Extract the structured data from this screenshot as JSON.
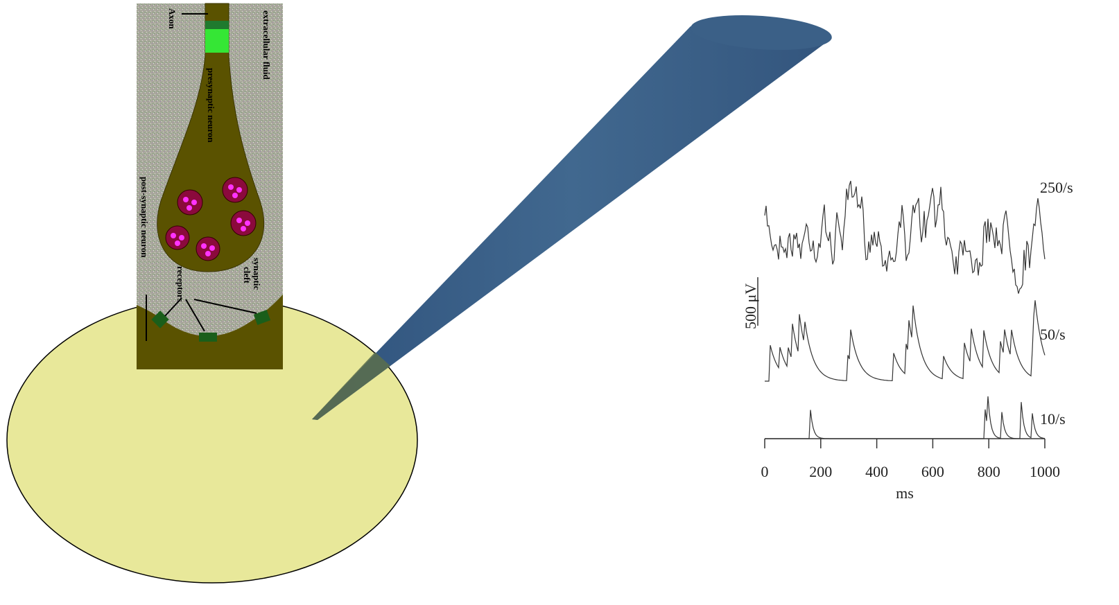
{
  "synapse": {
    "labels": {
      "axon": "Axon",
      "extracellular_fluid": "extracellular fluid",
      "presynaptic": "presynaptic neuron",
      "postsynaptic": "post-synaptic neuron",
      "cleft": [
        "synaptic",
        "cleft"
      ],
      "receptors": "receptors"
    }
  },
  "trace_plot": {
    "traces": [
      {
        "label": "250/s"
      },
      {
        "label": "50/s"
      },
      {
        "label": "10/s"
      }
    ],
    "scale_bar_label": "500 μV",
    "xlim": [
      0,
      1000
    ],
    "xticks": [
      0,
      200,
      400,
      600,
      800,
      1000
    ],
    "xlabel": "ms"
  }
}
